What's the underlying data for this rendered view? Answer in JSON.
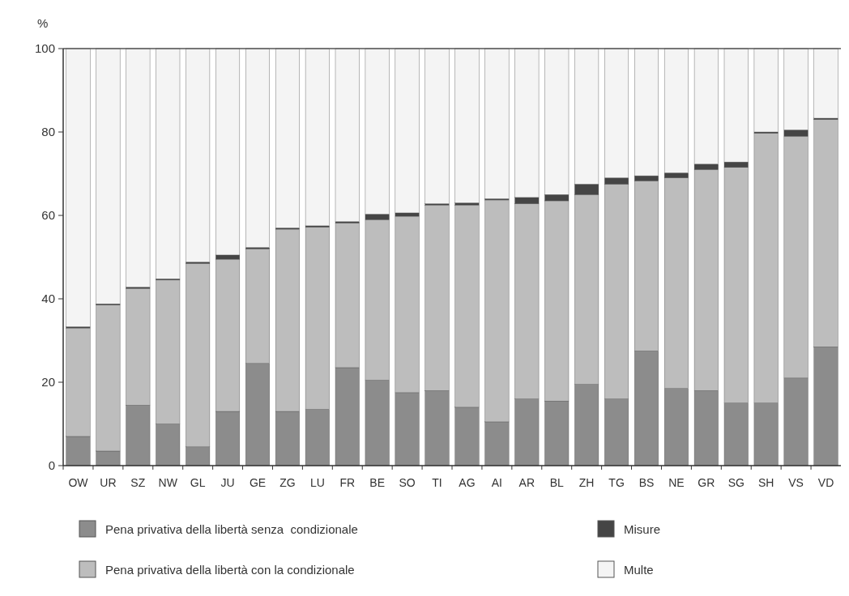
{
  "chart_data": {
    "type": "bar",
    "stacked": true,
    "ylabel": "%",
    "categories": [
      "OW",
      "UR",
      "SZ",
      "NW",
      "GL",
      "JU",
      "GE",
      "ZG",
      "LU",
      "FR",
      "BE",
      "SO",
      "TI",
      "AG",
      "AI",
      "AR",
      "BL",
      "ZH",
      "TG",
      "BS",
      "NE",
      "GR",
      "SG",
      "SH",
      "VS",
      "VD"
    ],
    "series": [
      {
        "name": "Pena privativa della libertà senza  condizionale",
        "color": "#8c8c8c",
        "values": [
          7,
          3.5,
          14.5,
          10,
          4.5,
          13,
          24.5,
          13,
          13.5,
          23.5,
          20.5,
          17.5,
          18,
          14,
          10.5,
          16,
          15.5,
          19.5,
          16,
          27.5,
          18.5,
          18,
          15,
          15,
          21,
          28.5
        ]
      },
      {
        "name": "Pena privativa della libertà con la condizionale",
        "color": "#bdbdbd",
        "values": [
          26,
          35,
          28,
          34.5,
          44,
          36.5,
          27.5,
          43.7,
          43.7,
          34.7,
          38.5,
          42.3,
          44.5,
          48.5,
          53.2,
          46.8,
          48,
          45.5,
          51.5,
          40.8,
          50.5,
          53,
          56.5,
          64.7,
          58,
          54.5
        ]
      },
      {
        "name": "Misure",
        "color": "#454545",
        "values": [
          0.3,
          0.3,
          0.3,
          0.3,
          0.3,
          1,
          0.3,
          0.3,
          0.3,
          0.3,
          1.3,
          0.8,
          0.3,
          0.5,
          0.3,
          1.5,
          1.5,
          2.5,
          1.5,
          1.2,
          1.2,
          1.3,
          1.3,
          0.3,
          1.5,
          0.3
        ]
      },
      {
        "name": "Multe",
        "color": "#f4f4f4",
        "values": [
          66.7,
          61.2,
          57.2,
          55.2,
          51.2,
          49.5,
          47.7,
          43,
          42.5,
          41.5,
          39.7,
          39.4,
          37.2,
          37,
          36,
          35.7,
          35,
          32.5,
          31,
          30.5,
          29.8,
          27.7,
          27.2,
          20,
          19.5,
          16.7
        ]
      }
    ],
    "ylim": [
      0,
      100
    ],
    "yticks": [
      0,
      20,
      40,
      60,
      80,
      100
    ],
    "legend": "bottom"
  }
}
